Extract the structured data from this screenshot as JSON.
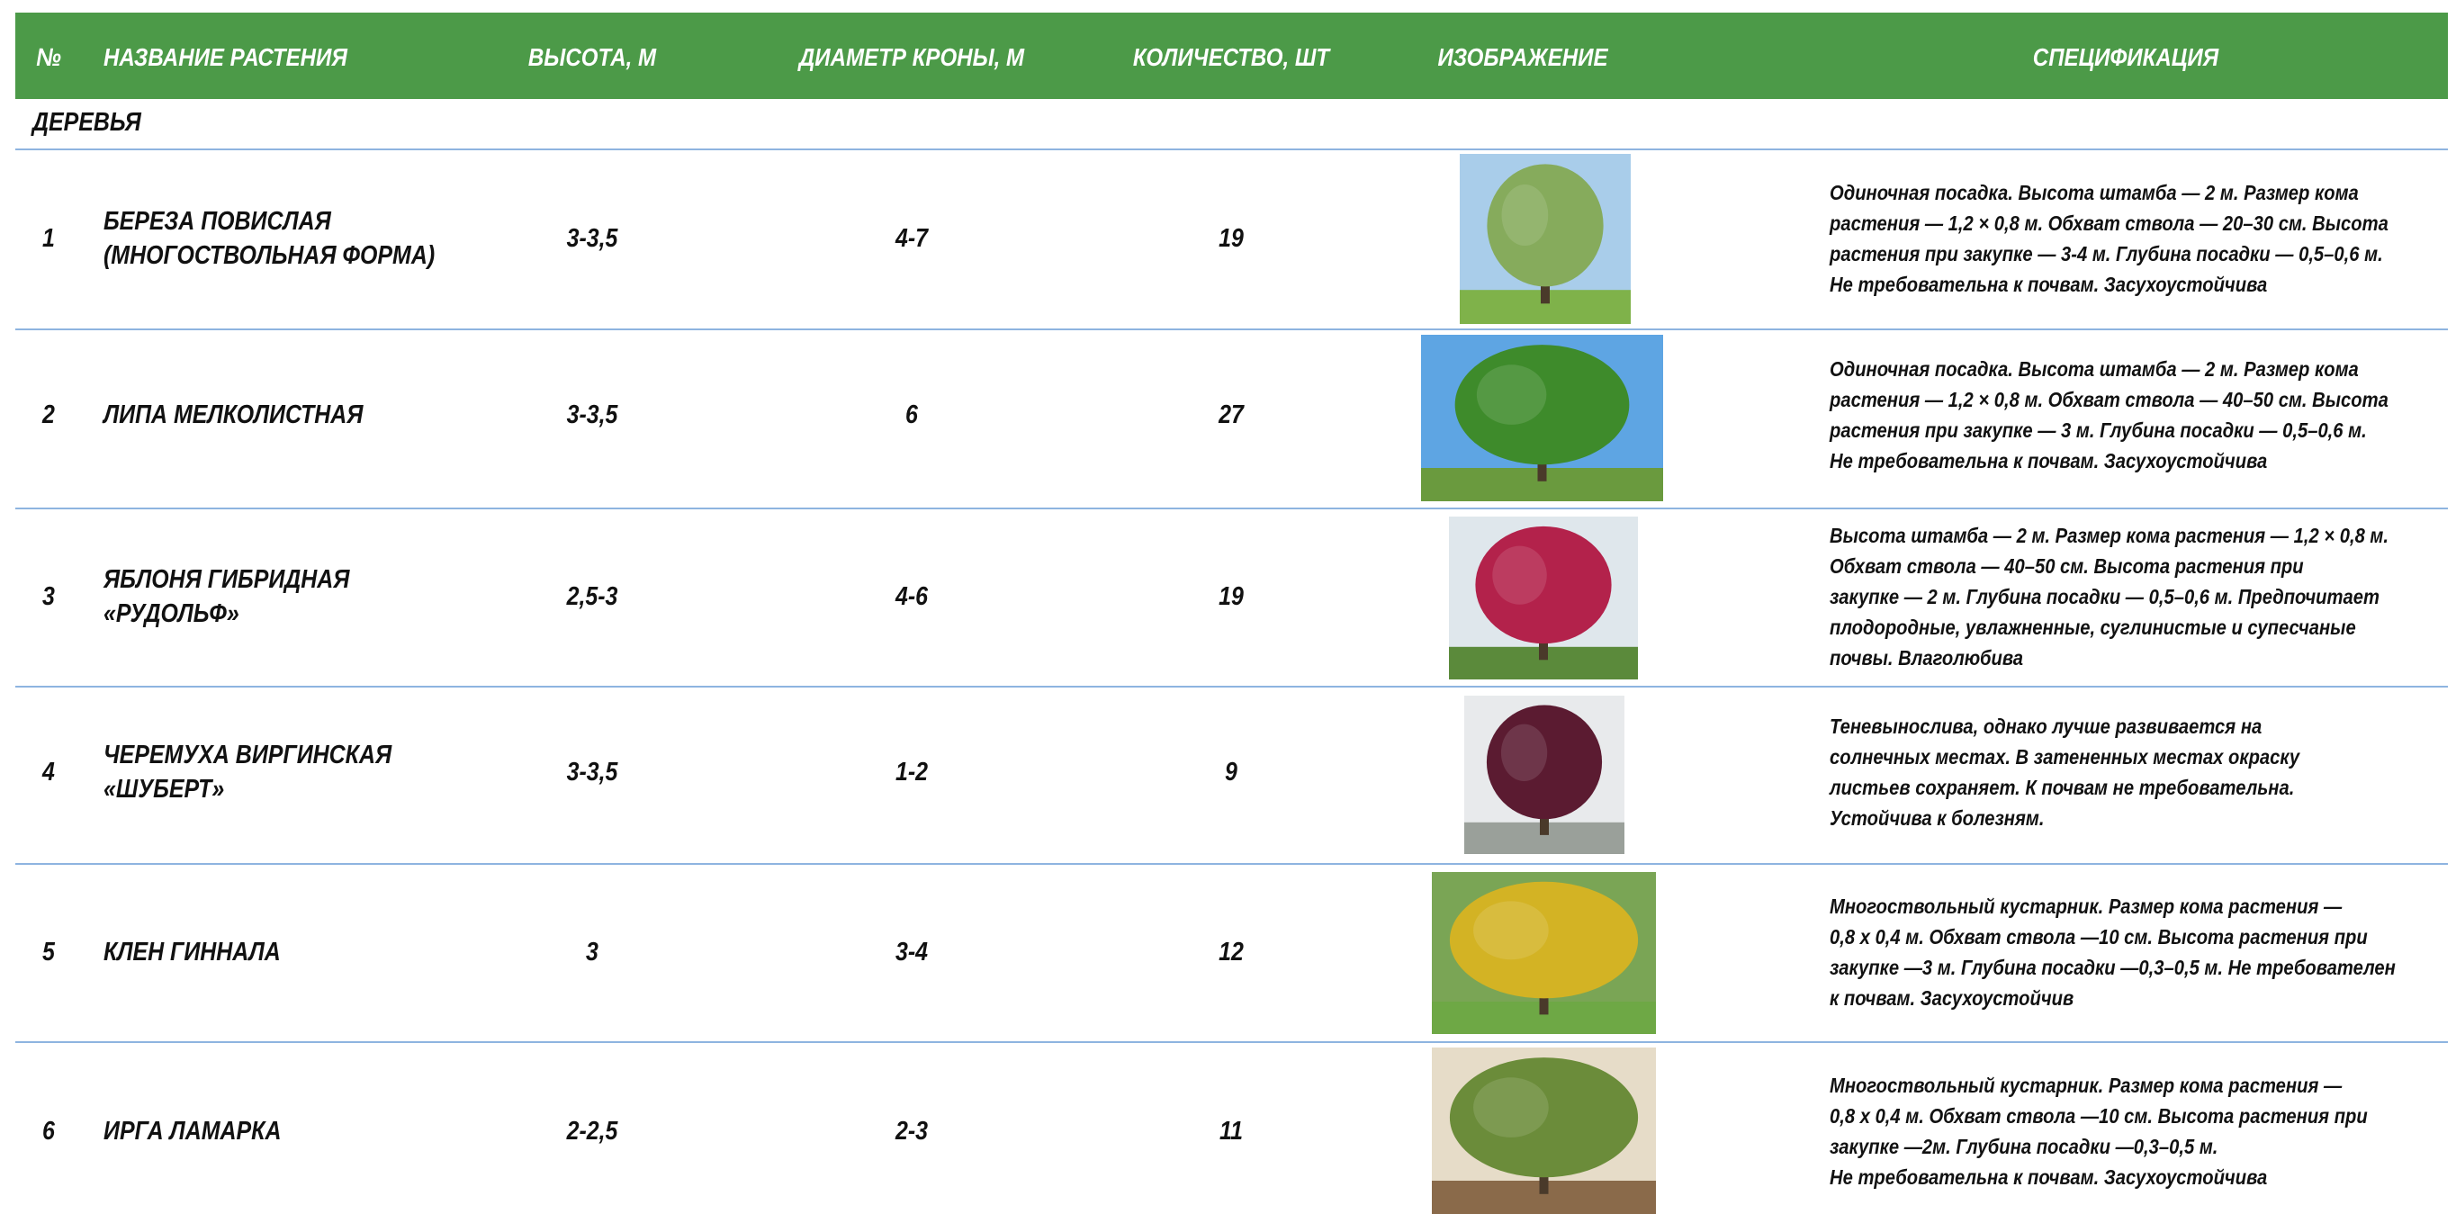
{
  "header": [
    "№",
    "НАЗВАНИЕ РАСТЕНИЯ",
    "ВЫСОТА, М",
    "ДИАМЕТР КРОНЫ, М",
    "КОЛИЧЕСТВО, ШТ",
    "ИЗОБРАЖЕНИЕ",
    "СПЕЦИФИКАЦИЯ"
  ],
  "section": "ДЕРЕВЬЯ",
  "rows": [
    {
      "number": "1",
      "name": [
        "БЕРЕЗА ПОВИСЛАЯ",
        "(МНОГОСТВОЛЬНАЯ ФОРМА)"
      ],
      "height": "3-3,5",
      "crown": "4-7",
      "quantity": "19",
      "specification": [
        "Одиночная посадка. Высота штамба — 2 м. Размер кома",
        "растения — 1,2 × 0,8 м. Обхват ствола — 20–30 см. Высота",
        "растения при закупке — 3-4 м. Глубина посадки — 0,5–0,6 м.",
        "Не требовательна к почвам. Засухоустойчива"
      ]
    },
    {
      "number": "2",
      "name": [
        "ЛИПА МЕЛКОЛИСТНАЯ"
      ],
      "height": "3-3,5",
      "crown": "6",
      "quantity": "27",
      "specification": [
        "Одиночная посадка. Высота штамба — 2 м. Размер кома",
        "растения  — 1,2 × 0,8 м. Обхват ствола — 40–50 см. Высота",
        "растения при закупке — 3 м. Глубина посадки — 0,5–0,6 м.",
        "Не требовательна  к почвам. Засухоустойчива"
      ]
    },
    {
      "number": "3",
      "name": [
        "ЯБЛОНЯ ГИБРИДНАЯ",
        "«РУДОЛЬФ»"
      ],
      "height": "2,5-3",
      "crown": "4-6",
      "quantity": "19",
      "specification": [
        "Высота штамба — 2 м. Размер кома растения — 1,2 × 0,8 м.",
        "Обхват ствола — 40–50 см. Высота растения при",
        "закупке — 2 м. Глубина посадки — 0,5–0,6 м. Предпочитает",
        "плодородные, увлажненные, суглинистые и супесчаные",
        "почвы. Влаголюбива"
      ]
    },
    {
      "number": "4",
      "name": [
        "ЧЕРЕМУХА ВИРГИНСКАЯ",
        "«ШУБЕРТ»"
      ],
      "height": "3-3,5",
      "crown": "1-2",
      "quantity": "9",
      "specification": [
        "Теневынослива, однако лучше развивается на",
        "солнечных местах.  В затененных местах окраску",
        "листьев сохраняет. К почвам не требовательна.",
        "Устойчива к болезням."
      ]
    },
    {
      "number": "5",
      "name": [
        "КЛЕН ГИННАЛА"
      ],
      "height": "3",
      "crown": "3-4",
      "quantity": "12",
      "specification": [
        "Многоствольный кустарник. Размер кома растения —",
        "0,8 х 0,4 м. Обхват ствола —10 см. Высота растения при",
        "закупке —3 м. Глубина посадки —0,3–0,5 м. Не требователен",
        "к почвам. Засухоустойчив"
      ]
    },
    {
      "number": "6",
      "name": [
        "ИРГА ЛАМАРКА"
      ],
      "height": "2-2,5",
      "crown": "2-3",
      "quantity": "11",
      "specification": [
        "Многоствольный кустарник. Размер кома растения —",
        "0,8 х 0,4 м. Обхват ствола —10 см. Высота растения при",
        "закупке —2м. Глубина посадки —0,3–0,5 м.",
        "Не требовательна к почвам. Засухоустойчива"
      ]
    }
  ]
}
